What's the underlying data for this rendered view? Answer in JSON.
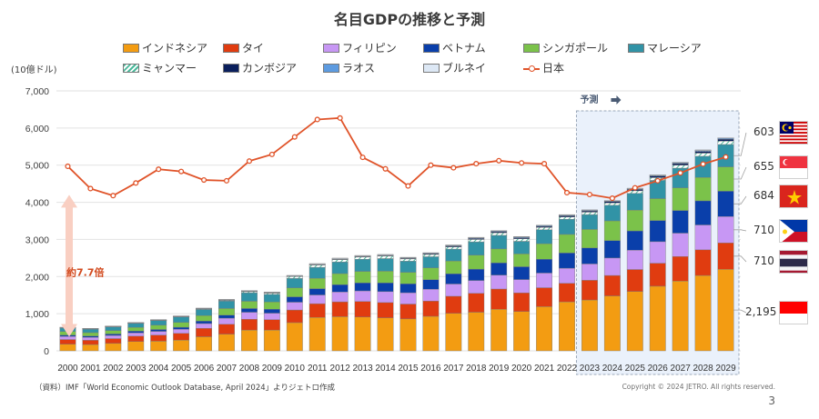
{
  "title": "名目GDPの推移と予測",
  "unit_label": "(10億ドル)",
  "forecast_label": "予測",
  "forecast_arrow_icon": "right-arrow-icon",
  "multiplier_annotation": "約7.7倍",
  "source": "（資料）IMF「World Economic Outlook Database, April 2024」よりジェトロ作成",
  "copyright": "Copyright © 2024 JETRO. All rights reserved.",
  "page_number": "3",
  "colors": {
    "indonesia": "#f39c12",
    "thailand": "#e03c10",
    "philippines": "#c797f4",
    "vietnam": "#0a3faa",
    "singapore": "#7bc24a",
    "malaysia": "#3193a6",
    "myanmar": "#8fe0c8",
    "cambodia": "#0a1f5c",
    "laos": "#5d9be0",
    "brunei": "#dde8f5",
    "japan": "#e0542a",
    "forecast_bg": "#eaf1fb"
  },
  "legend": [
    {
      "key": "indonesia",
      "label": "インドネシア"
    },
    {
      "key": "thailand",
      "label": "タイ"
    },
    {
      "key": "philippines",
      "label": "フィリピン"
    },
    {
      "key": "vietnam",
      "label": "ベトナム"
    },
    {
      "key": "singapore",
      "label": "シンガポール"
    },
    {
      "key": "malaysia",
      "label": "マレーシア"
    },
    {
      "key": "myanmar",
      "label": "ミャンマー"
    },
    {
      "key": "cambodia",
      "label": "カンボジア"
    },
    {
      "key": "laos",
      "label": "ラオス"
    },
    {
      "key": "brunei",
      "label": "ブルネイ"
    },
    {
      "key": "japan",
      "label": "日本"
    }
  ],
  "callouts_2029": [
    {
      "country": "malaysia",
      "value": "603",
      "flag": "malaysia-flag-icon"
    },
    {
      "country": "singapore",
      "value": "655",
      "flag": "singapore-flag-icon"
    },
    {
      "country": "vietnam",
      "value": "684",
      "flag": "vietnam-flag-icon"
    },
    {
      "country": "philippines",
      "value": "710",
      "flag": "philippines-flag-icon"
    },
    {
      "country": "thailand",
      "value": "710",
      "flag": "thailand-flag-icon"
    },
    {
      "country": "indonesia",
      "value": "2,195",
      "flag": "indonesia-flag-icon"
    }
  ],
  "chart_data": {
    "type": "bar",
    "subtype": "stacked bar with line overlay",
    "title": "名目GDPの推移と予測",
    "ylabel": "(10億ドル)",
    "ylim": [
      0,
      7000
    ],
    "yticks": [
      0,
      1000,
      2000,
      3000,
      4000,
      5000,
      6000,
      7000
    ],
    "ytick_labels": [
      "0",
      "1,000",
      "2,000",
      "3,000",
      "4,000",
      "5,000",
      "6,000",
      "7,000"
    ],
    "grid": true,
    "legend_position": "top",
    "forecast_start": "2023",
    "categories": [
      "2000",
      "2001",
      "2002",
      "2003",
      "2004",
      "2005",
      "2006",
      "2007",
      "2008",
      "2009",
      "2010",
      "2011",
      "2012",
      "2013",
      "2014",
      "2015",
      "2016",
      "2017",
      "2018",
      "2019",
      "2020",
      "2021",
      "2022",
      "2023",
      "2024",
      "2025",
      "2026",
      "2027",
      "2028",
      "2029"
    ],
    "series": [
      {
        "name": "インドネシア",
        "key": "indonesia",
        "values": [
          180,
          170,
          200,
          250,
          260,
          290,
          380,
          450,
          560,
          560,
          760,
          900,
          920,
          910,
          890,
          860,
          930,
          1010,
          1040,
          1120,
          1060,
          1190,
          1320,
          1370,
          1480,
          1600,
          1740,
          1880,
          2030,
          2195
        ]
      },
      {
        "name": "タイ",
        "key": "thailand",
        "values": [
          125,
          115,
          130,
          145,
          165,
          180,
          225,
          265,
          290,
          280,
          340,
          370,
          400,
          420,
          410,
          400,
          410,
          460,
          510,
          545,
          500,
          510,
          500,
          530,
          550,
          590,
          620,
          660,
          690,
          710
        ]
      },
      {
        "name": "フィリピン",
        "key": "philippines",
        "values": [
          85,
          80,
          85,
          90,
          100,
          110,
          130,
          165,
          190,
          175,
          210,
          235,
          265,
          285,
          295,
          305,
          320,
          330,
          345,
          375,
          360,
          395,
          405,
          440,
          470,
          520,
          580,
          630,
          670,
          710
        ]
      },
      {
        "name": "ベトナム",
        "key": "vietnam",
        "values": [
          35,
          35,
          40,
          45,
          50,
          55,
          65,
          80,
          100,
          105,
          145,
          170,
          195,
          215,
          235,
          240,
          255,
          275,
          305,
          330,
          345,
          370,
          410,
          430,
          470,
          520,
          570,
          610,
          650,
          684
        ]
      },
      {
        "name": "シンガポール",
        "key": "singapore",
        "values": [
          95,
          90,
          92,
          100,
          115,
          130,
          150,
          180,
          195,
          195,
          240,
          280,
          300,
          310,
          315,
          310,
          320,
          345,
          375,
          375,
          345,
          420,
          500,
          500,
          530,
          560,
          590,
          610,
          630,
          655
        ]
      },
      {
        "name": "マレーシア",
        "key": "malaysia",
        "values": [
          95,
          95,
          100,
          110,
          125,
          145,
          165,
          200,
          230,
          205,
          255,
          295,
          315,
          325,
          340,
          300,
          300,
          320,
          360,
          365,
          340,
          375,
          410,
          400,
          420,
          450,
          490,
          530,
          570,
          603
        ]
      },
      {
        "name": "ミャンマー",
        "key": "myanmar",
        "values": [
          10,
          10,
          10,
          10,
          12,
          13,
          15,
          20,
          30,
          35,
          50,
          60,
          60,
          60,
          65,
          60,
          60,
          60,
          65,
          70,
          70,
          65,
          60,
          65,
          65,
          70,
          75,
          80,
          85,
          90
        ]
      },
      {
        "name": "カンボジア",
        "key": "cambodia",
        "values": [
          4,
          4,
          5,
          5,
          5,
          6,
          7,
          9,
          10,
          11,
          11,
          13,
          14,
          15,
          17,
          18,
          20,
          22,
          25,
          27,
          26,
          27,
          30,
          32,
          34,
          37,
          40,
          43,
          46,
          50
        ]
      },
      {
        "name": "ラオス",
        "key": "laos",
        "values": [
          2,
          2,
          2,
          2,
          3,
          3,
          4,
          5,
          6,
          6,
          7,
          8,
          10,
          11,
          12,
          14,
          16,
          17,
          18,
          19,
          19,
          19,
          16,
          15,
          15,
          17,
          19,
          21,
          22,
          24
        ]
      },
      {
        "name": "ブルネイ",
        "key": "brunei",
        "values": [
          6,
          5,
          5,
          6,
          7,
          9,
          11,
          12,
          14,
          11,
          14,
          19,
          19,
          18,
          17,
          13,
          11,
          12,
          14,
          13,
          12,
          14,
          17,
          15,
          16,
          16,
          17,
          17,
          18,
          18
        ]
      }
    ],
    "line_series": {
      "name": "日本",
      "key": "japan",
      "values": [
        4970,
        4370,
        4180,
        4520,
        4890,
        4830,
        4600,
        4580,
        5110,
        5290,
        5760,
        6230,
        6270,
        5210,
        4900,
        4440,
        5000,
        4930,
        5040,
        5120,
        5060,
        5040,
        4260,
        4210,
        4110,
        4390,
        4580,
        4790,
        5030,
        5220
      ]
    },
    "annotations": [
      {
        "text": "約7.7倍",
        "type": "double-arrow",
        "from": 0,
        "to": 4200
      },
      {
        "text": "予測",
        "type": "shaded-region",
        "range": [
          "2023",
          "2029"
        ]
      },
      {
        "text": "603",
        "series": "マレーシア",
        "year": "2029"
      },
      {
        "text": "655",
        "series": "シンガポール",
        "year": "2029"
      },
      {
        "text": "684",
        "series": "ベトナム",
        "year": "2029"
      },
      {
        "text": "710",
        "series": "フィリピン",
        "year": "2029"
      },
      {
        "text": "710",
        "series": "タイ",
        "year": "2029"
      },
      {
        "text": "2,195",
        "series": "インドネシア",
        "year": "2029"
      }
    ]
  }
}
